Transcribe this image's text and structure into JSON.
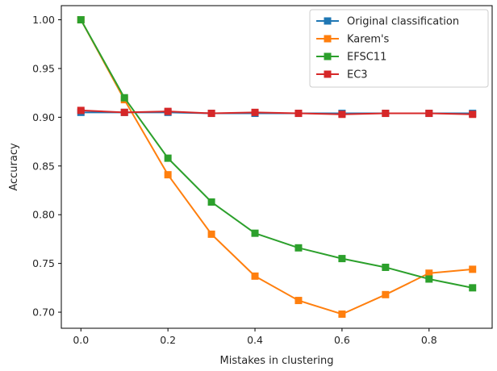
{
  "chart_data": {
    "type": "line",
    "title": "",
    "xlabel": "Mistakes in clustering",
    "ylabel": "Accuracy",
    "xlim": [
      -0.045,
      0.945
    ],
    "ylim": [
      0.6835,
      1.0145
    ],
    "xticks": [
      0.0,
      0.2,
      0.4,
      0.6,
      0.8
    ],
    "xtick_labels": [
      "0.0",
      "0.2",
      "0.4",
      "0.6",
      "0.8"
    ],
    "yticks": [
      0.7,
      0.75,
      0.8,
      0.85,
      0.9,
      0.95,
      1.0
    ],
    "ytick_labels": [
      "0.70",
      "0.75",
      "0.80",
      "0.85",
      "0.90",
      "0.95",
      "1.00"
    ],
    "grid": false,
    "legend_position": "top-right",
    "x": [
      0.0,
      0.1,
      0.2,
      0.3,
      0.4,
      0.5,
      0.6,
      0.7,
      0.8,
      0.9
    ],
    "series": [
      {
        "name": "Original classification",
        "color": "#1f77b4",
        "marker": "square",
        "values": [
          0.905,
          0.905,
          0.905,
          0.904,
          0.904,
          0.904,
          0.904,
          0.904,
          0.904,
          0.904
        ]
      },
      {
        "name": "Karem's",
        "color": "#ff7f0e",
        "marker": "square",
        "values": [
          1.0,
          0.918,
          0.841,
          0.78,
          0.737,
          0.712,
          0.698,
          0.718,
          0.74,
          0.744
        ]
      },
      {
        "name": "EFSC11",
        "color": "#2ca02c",
        "marker": "square",
        "values": [
          1.0,
          0.92,
          0.858,
          0.813,
          0.781,
          0.766,
          0.755,
          0.746,
          0.734,
          0.725
        ]
      },
      {
        "name": "EC3",
        "color": "#d62728",
        "marker": "square",
        "values": [
          0.907,
          0.905,
          0.906,
          0.904,
          0.905,
          0.904,
          0.903,
          0.904,
          0.904,
          0.903
        ]
      }
    ]
  }
}
